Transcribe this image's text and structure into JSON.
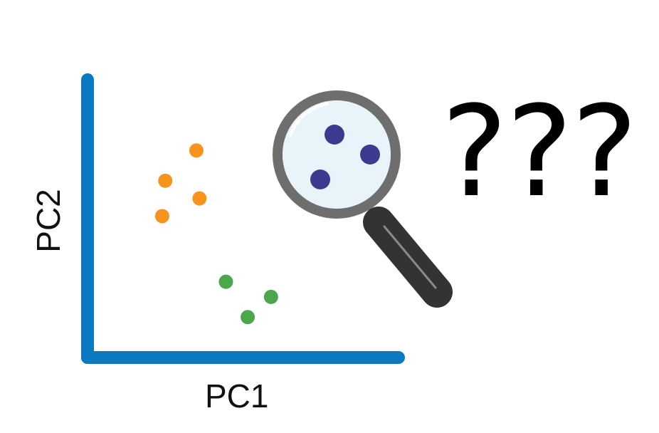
{
  "chart_data": {
    "type": "scatter",
    "xlabel": "PC1",
    "ylabel": "PC2",
    "series": [
      {
        "color": "#F7941D",
        "points": [
          [
            7.0,
            8.2
          ],
          [
            5.0,
            7.0
          ],
          [
            7.2,
            6.3
          ],
          [
            4.8,
            5.6
          ]
        ]
      },
      {
        "color": "#4CA64C",
        "points": [
          [
            8.9,
            3.0
          ],
          [
            10.3,
            1.6
          ],
          [
            11.8,
            2.4
          ]
        ]
      }
    ],
    "xlim": [
      0,
      20
    ],
    "ylim": [
      0,
      11
    ]
  },
  "magnifier": {
    "dot_color": "#3B3A8F",
    "lens_color": "#E8F4FA",
    "rim_color": "#6E6E6E",
    "handle_color": "#333333",
    "icon": "magnifying-glass-icon"
  },
  "axis_color": "#0B79C1",
  "question_marks": "???"
}
